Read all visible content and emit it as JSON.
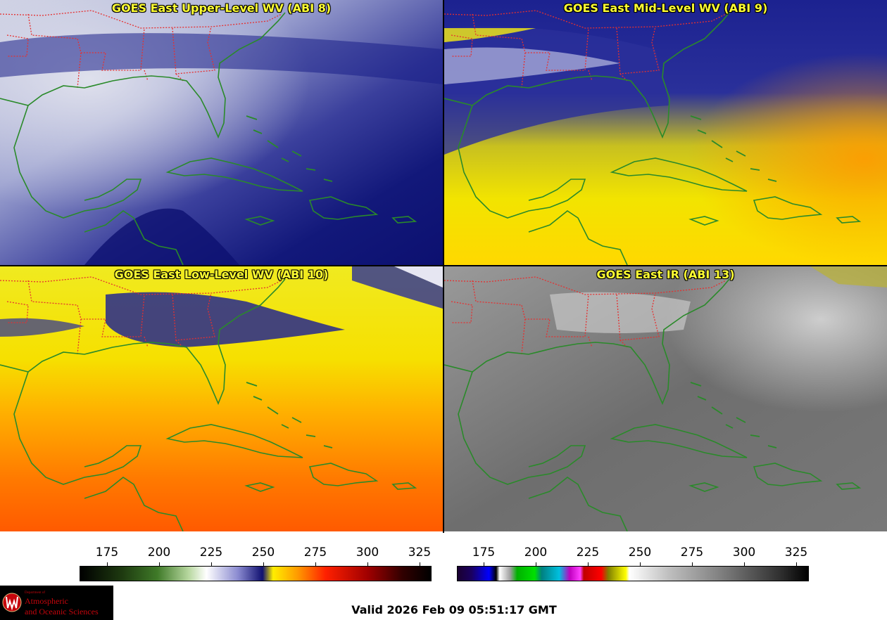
{
  "panels": {
    "upper_wv": {
      "title": "GOES East Upper-Level WV (ABI 8)"
    },
    "mid_wv": {
      "title": "GOES East Mid-Level WV (ABI 9)"
    },
    "low_wv": {
      "title": "GOES East Low-Level WV (ABI 10)"
    },
    "ir": {
      "title": "GOES East IR (ABI 13)"
    }
  },
  "colorbars": {
    "wv": {
      "ticks": [
        "175",
        "200",
        "225",
        "250",
        "275",
        "300",
        "325"
      ]
    },
    "ir": {
      "ticks": [
        "175",
        "200",
        "225",
        "250",
        "275",
        "300",
        "325"
      ]
    }
  },
  "valid_time": "Valid 2026 Feb 09 05:51:17 GMT",
  "logo": {
    "dept_line": "Department of",
    "line1": "Atmospheric",
    "line2": "and Oceanic Sciences"
  },
  "colors": {
    "border_states": "#e53030",
    "coastline": "#1a8a1a",
    "title_text": "#ffff33",
    "logo_red": "#c5050c"
  }
}
